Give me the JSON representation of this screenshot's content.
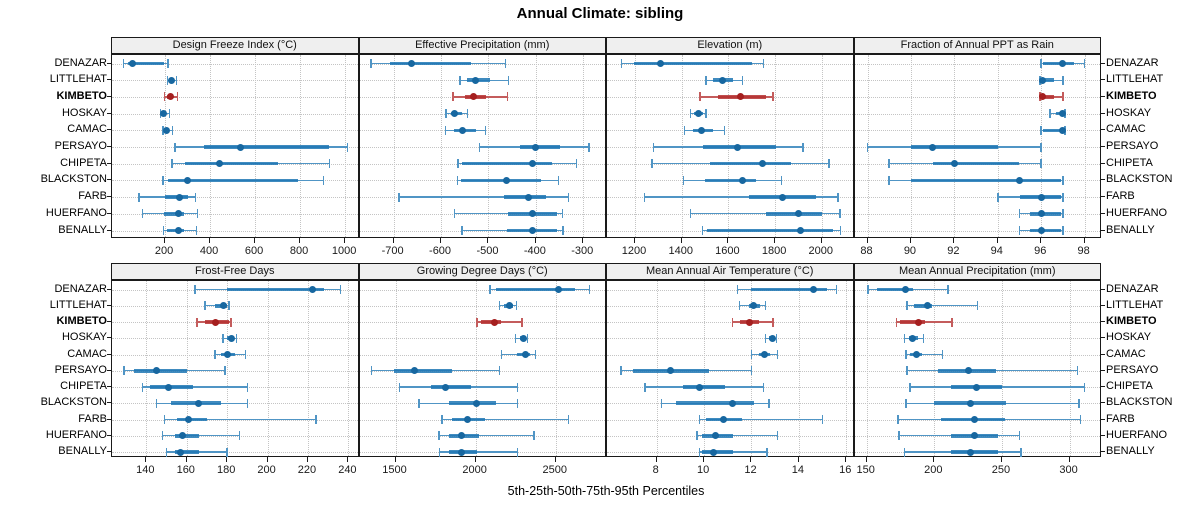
{
  "title": "Annual Climate: sibling",
  "axis_label": "5th-25th-50th-75th-95th Percentiles",
  "sites": [
    "DENAZAR",
    "LITTLEHAT",
    "KIMBETO",
    "HOSKAY",
    "CAMAC",
    "PERSAYO",
    "CHIPETA",
    "BLACKSTON",
    "FARB",
    "HUERFANO",
    "BENALLY"
  ],
  "highlight_site": "KIMBETO",
  "colors": {
    "blue_dot": "#1767a0",
    "blue_bar": "#1f77b4",
    "blue_line": "#5095c5",
    "red_dot": "#a51f1f",
    "red_bar": "#b53030",
    "red_line": "#c45c5c",
    "grid": "#c4c4c4",
    "border": "#1a1a1a",
    "strip_bg": "#efefef"
  },
  "chart_data": {
    "type": "dotplot-percentiles",
    "percentile_levels": [
      5,
      25,
      50,
      75,
      95
    ],
    "legend_note": "each row shows 5th-25th-50th-75th-95th percentiles; dot = median",
    "grid": "dotted",
    "panels": [
      {
        "label": "Design Freeze Index (°C)",
        "domain": [
          -36,
          1064
        ],
        "ticks": [
          200,
          400,
          600,
          800,
          1000
        ],
        "values": [
          [
            15,
            35,
            57,
            195,
            212
          ],
          [
            210,
            218,
            230,
            240,
            250
          ],
          [
            197,
            208,
            222,
            237,
            256
          ],
          [
            179,
            186,
            194,
            204,
            219
          ],
          [
            190,
            198,
            208,
            219,
            232
          ],
          [
            245,
            375,
            535,
            930,
            1010
          ],
          [
            230,
            290,
            440,
            700,
            930
          ],
          [
            190,
            215,
            300,
            790,
            905
          ],
          [
            85,
            200,
            262,
            300,
            335
          ],
          [
            100,
            195,
            258,
            285,
            345
          ],
          [
            192,
            208,
            258,
            282,
            340
          ]
        ]
      },
      {
        "label": "Effective Precipitation (mm)",
        "domain": [
          -772,
          -250
        ],
        "ticks": [
          -700,
          -600,
          -500,
          -400,
          -300
        ],
        "values": [
          [
            -748,
            -708,
            -663,
            -537,
            -464
          ],
          [
            -560,
            -546,
            -527,
            -497,
            -458
          ],
          [
            -575,
            -550,
            -532,
            -505,
            -460
          ],
          [
            -590,
            -579,
            -571,
            -555,
            -544
          ],
          [
            -591,
            -572,
            -554,
            -527,
            -506
          ],
          [
            -519,
            -434,
            -401,
            -350,
            -288
          ],
          [
            -564,
            -556,
            -408,
            -365,
            -314
          ],
          [
            -565,
            -558,
            -461,
            -390,
            -352
          ],
          [
            -689,
            -468,
            -415,
            -378,
            -331
          ],
          [
            -572,
            -459,
            -408,
            -356,
            -344
          ],
          [
            -556,
            -460,
            -408,
            -355,
            -343
          ]
        ]
      },
      {
        "label": "Elevation (m)",
        "domain": [
          1080,
          2140
        ],
        "ticks": [
          1200,
          1400,
          1600,
          1800,
          2000
        ],
        "values": [
          [
            1143,
            1195,
            1310,
            1700,
            1750
          ],
          [
            1505,
            1535,
            1575,
            1620,
            1660
          ],
          [
            1478,
            1555,
            1650,
            1760,
            1790
          ],
          [
            1437,
            1452,
            1472,
            1492,
            1505
          ],
          [
            1412,
            1450,
            1483,
            1533,
            1583
          ],
          [
            1280,
            1490,
            1640,
            1805,
            1920
          ],
          [
            1273,
            1520,
            1748,
            1870,
            2030
          ],
          [
            1408,
            1500,
            1660,
            1720,
            1827
          ],
          [
            1240,
            1690,
            1830,
            1975,
            2070
          ],
          [
            1437,
            1762,
            1900,
            2000,
            2077
          ],
          [
            1490,
            1510,
            1910,
            2050,
            2080
          ]
        ]
      },
      {
        "label": "Fraction of Annual PPT as Rain",
        "domain": [
          87.4,
          98.8
        ],
        "ticks": [
          88,
          90,
          92,
          94,
          96,
          98
        ],
        "values": [
          [
            96,
            96.1,
            97,
            97.5,
            98
          ],
          [
            95.95,
            96,
            96.05,
            96.6,
            97
          ],
          [
            95.95,
            96,
            96.05,
            96.6,
            97
          ],
          [
            96.4,
            96.7,
            97,
            97.05,
            97.1
          ],
          [
            96,
            96.1,
            97,
            97,
            97.1
          ],
          [
            88,
            90,
            91,
            94,
            96
          ],
          [
            89,
            91,
            92,
            95,
            96
          ],
          [
            89,
            90,
            95,
            96.9,
            97
          ],
          [
            94,
            95,
            96,
            96.9,
            97
          ],
          [
            95,
            95.5,
            96,
            96.9,
            97
          ],
          [
            95,
            95.5,
            96,
            96.9,
            97
          ]
        ]
      },
      {
        "label": "Frost-Free Days",
        "domain": [
          123,
          245.5
        ],
        "ticks": [
          140,
          160,
          180,
          200,
          220,
          240
        ],
        "values": [
          [
            164,
            180,
            222,
            228,
            236
          ],
          [
            169,
            174,
            178,
            180,
            181
          ],
          [
            165,
            169,
            174,
            181,
            182
          ],
          [
            178,
            180,
            182,
            183.5,
            184.5
          ],
          [
            174,
            177,
            180,
            184,
            189
          ],
          [
            129,
            134,
            145,
            160,
            179
          ],
          [
            138,
            142,
            151,
            163,
            190
          ],
          [
            145,
            152,
            166,
            177,
            190
          ],
          [
            149,
            155,
            161,
            170,
            224
          ],
          [
            148,
            154,
            158,
            166,
            186
          ],
          [
            150,
            154,
            157,
            166,
            180
          ]
        ]
      },
      {
        "label": "Growing Degree Days (°C)",
        "domain": [
          1275,
          2820
        ],
        "ticks": [
          1500,
          2000,
          2500
        ],
        "values": [
          [
            2090,
            2130,
            2520,
            2620,
            2710
          ],
          [
            2150,
            2180,
            2210,
            2235,
            2255
          ],
          [
            2010,
            2035,
            2120,
            2160,
            2290
          ],
          [
            2250,
            2280,
            2300,
            2315,
            2325
          ],
          [
            2160,
            2260,
            2310,
            2340,
            2375
          ],
          [
            1350,
            1490,
            1620,
            1855,
            2150
          ],
          [
            1525,
            1720,
            1810,
            1970,
            2260
          ],
          [
            1645,
            1835,
            2005,
            2125,
            2260
          ],
          [
            1790,
            1855,
            1950,
            2060,
            2580
          ],
          [
            1770,
            1835,
            1910,
            2020,
            2365
          ],
          [
            1775,
            1835,
            1910,
            2010,
            2260
          ]
        ]
      },
      {
        "label": "Mean Annual Air Temperature (°C)",
        "domain": [
          5.9,
          16.35
        ],
        "ticks": [
          8,
          10,
          12,
          14,
          16
        ],
        "values": [
          [
            11.4,
            12.0,
            14.6,
            15.2,
            15.6
          ],
          [
            11.5,
            11.9,
            12.1,
            12.35,
            12.6
          ],
          [
            11.2,
            11.5,
            11.9,
            12.3,
            12.9
          ],
          [
            12.6,
            12.75,
            12.9,
            13.0,
            13.05
          ],
          [
            12.0,
            12.3,
            12.55,
            12.8,
            13.1
          ],
          [
            6.5,
            7.0,
            8.6,
            10.2,
            12.0
          ],
          [
            7.5,
            9.1,
            9.8,
            10.9,
            12.5
          ],
          [
            8.2,
            8.8,
            11.2,
            12.1,
            12.75
          ],
          [
            9.8,
            10.1,
            10.8,
            11.6,
            15.0
          ],
          [
            9.7,
            9.9,
            10.5,
            11.2,
            13.1
          ],
          [
            9.8,
            9.9,
            10.4,
            11.2,
            12.65
          ]
        ]
      },
      {
        "label": "Mean Annual Precipitation (mm)",
        "domain": [
          141,
          324
        ],
        "ticks": [
          150,
          200,
          250,
          300
        ],
        "values": [
          [
            151,
            158,
            179,
            184,
            210
          ],
          [
            180,
            185,
            195,
            198,
            232
          ],
          [
            172,
            175,
            188,
            193,
            213
          ],
          [
            178,
            181,
            184,
            188,
            192
          ],
          [
            179,
            182,
            187,
            191,
            206
          ],
          [
            180,
            203,
            225,
            246,
            306
          ],
          [
            182,
            212,
            231,
            250,
            311
          ],
          [
            179,
            200,
            227,
            253,
            307
          ],
          [
            173,
            205,
            230,
            252,
            308
          ],
          [
            174,
            212,
            230,
            247,
            263
          ],
          [
            178,
            212,
            227,
            247,
            264
          ]
        ]
      }
    ]
  }
}
